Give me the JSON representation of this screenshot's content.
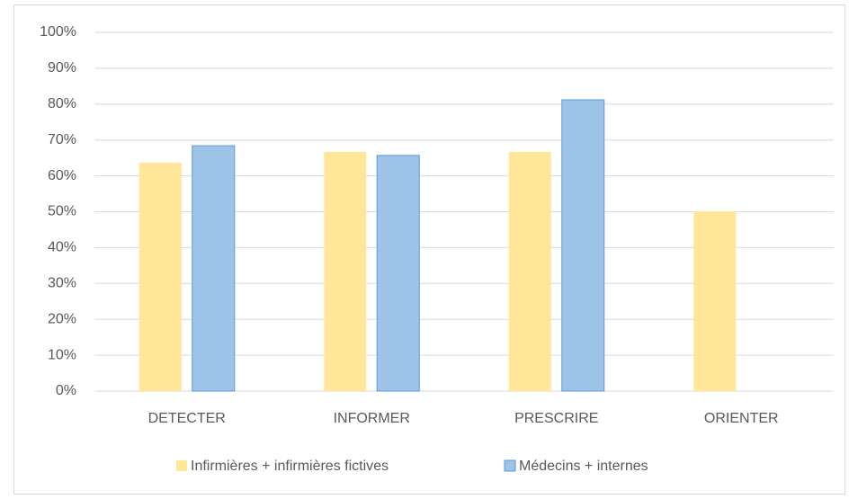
{
  "chart_data": {
    "type": "bar",
    "categories": [
      "DETECTER",
      "INFORMER",
      "PRESCRIRE",
      "ORIENTER"
    ],
    "series": [
      {
        "name": "Infirmières + infirmières fictives",
        "color": "#ffe699",
        "values": [
          63.7,
          66.7,
          66.7,
          50.1
        ]
      },
      {
        "name": "Médecins + internes",
        "color": "#9dc3e6",
        "values": [
          68.4,
          65.7,
          81.2,
          null
        ]
      }
    ],
    "ylim": [
      0,
      100
    ],
    "yticks": [
      {
        "value": 0,
        "label": "0%"
      },
      {
        "value": 10,
        "label": "10%"
      },
      {
        "value": 20,
        "label": "20%"
      },
      {
        "value": 30,
        "label": "30%"
      },
      {
        "value": 40,
        "label": "40%"
      },
      {
        "value": 50,
        "label": "50%"
      },
      {
        "value": 60,
        "label": "60%"
      },
      {
        "value": 70,
        "label": "70%"
      },
      {
        "value": 80,
        "label": "80%"
      },
      {
        "value": 90,
        "label": "90%"
      },
      {
        "value": 100,
        "label": "100%"
      }
    ],
    "grid": true,
    "legend": "bottom"
  }
}
